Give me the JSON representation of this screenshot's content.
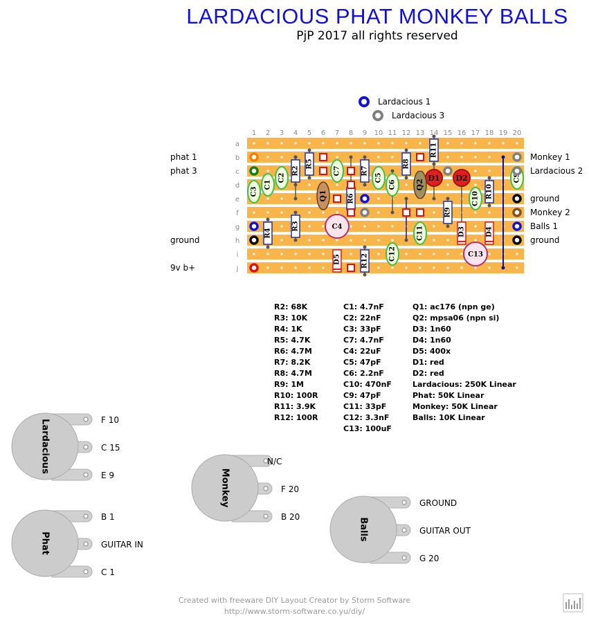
{
  "header": {
    "title": "LARDACIOUS PHAT MONKEY BALLS",
    "subtitle": "PjP 2017 all rights reserved"
  },
  "board": {
    "columns": [
      "1",
      "2",
      "3",
      "4",
      "5",
      "6",
      "7",
      "8",
      "9",
      "10",
      "11",
      "12",
      "13",
      "14",
      "15",
      "16",
      "17",
      "18",
      "19",
      "20"
    ],
    "rows": [
      "a",
      "b",
      "c",
      "d",
      "e",
      "f",
      "g",
      "h",
      "i",
      "j"
    ],
    "strip_color": "#f9b54a",
    "top_legend": [
      "Lardacious 1",
      "Lardacious 3"
    ],
    "left_labels": [
      "phat 1",
      "phat 3",
      "ground",
      "9v b+"
    ],
    "right_labels": [
      "Monkey 1",
      "Lardacious 2",
      "ground",
      "Monkey 2",
      "Balls 1",
      "ground"
    ],
    "components": {
      "resistors": [
        "R2",
        "R3",
        "R4",
        "R5",
        "R6",
        "R7",
        "R8",
        "R9",
        "R10",
        "R11",
        "R12"
      ],
      "caps": [
        "C1",
        "C2",
        "C3",
        "C5",
        "C6",
        "C7",
        "C9",
        "C10",
        "C11",
        "C12"
      ],
      "electrolytic": [
        "C4",
        "C13"
      ],
      "diodes": [
        "D3",
        "D4",
        "D5"
      ],
      "leds": [
        "D1",
        "D2"
      ],
      "transistors": [
        "Q1",
        "Q2"
      ]
    }
  },
  "bom": {
    "resistors": [
      "R2: 68K",
      "R3: 10K",
      "R4: 1K",
      "R5: 4.7K",
      "R6: 4.7M",
      "R7: 8.2K",
      "R8: 4.7M",
      "R9: 1M",
      "R10: 100R",
      "R11: 3.9K",
      "R12: 100R"
    ],
    "capacitors": [
      "C1: 4.7nF",
      "C2: 22nF",
      "C3: 33pF",
      "C7: 4.7nF",
      "C4: 22uF",
      "C5: 47pF",
      "C6: 2.2nF",
      "C10: 470nF",
      "C9: 47pF",
      "C11: 33pF",
      "C12: 3.3nF",
      "C13: 100uF"
    ],
    "semis_pots": [
      "Q1: ac176 (npn ge)",
      "Q2: mpsa06 (npn si)",
      "D3: 1n60",
      "D4: 1n60",
      "D5: 400x",
      "D1: red",
      "D2: red",
      "Lardacious: 250K Linear",
      "Phat: 50K Linear",
      "Monkey: 50K Linear",
      "Balls: 10K Linear"
    ]
  },
  "pots": [
    {
      "name": "Lardacious",
      "lugs": [
        "F 10",
        "C 15",
        "E 9"
      ]
    },
    {
      "name": "Phat",
      "lugs": [
        "B 1",
        "GUITAR IN",
        "C 1"
      ]
    },
    {
      "name": "Monkey",
      "lugs": [
        "N/C",
        "F 20",
        "B 20"
      ]
    },
    {
      "name": "Balls",
      "lugs": [
        "GROUND",
        "GUITAR OUT",
        "G 20"
      ]
    }
  ],
  "footer": {
    "line1": "Created with freeware DIY Layout Creator by Storm Software",
    "line2": "http://www.storm-software.co.yu/diy/"
  },
  "colors": {
    "title": "#1010d8",
    "resistor_border": "#2030a0",
    "cap_border": "#40c040",
    "led_fill": "#e02020"
  }
}
